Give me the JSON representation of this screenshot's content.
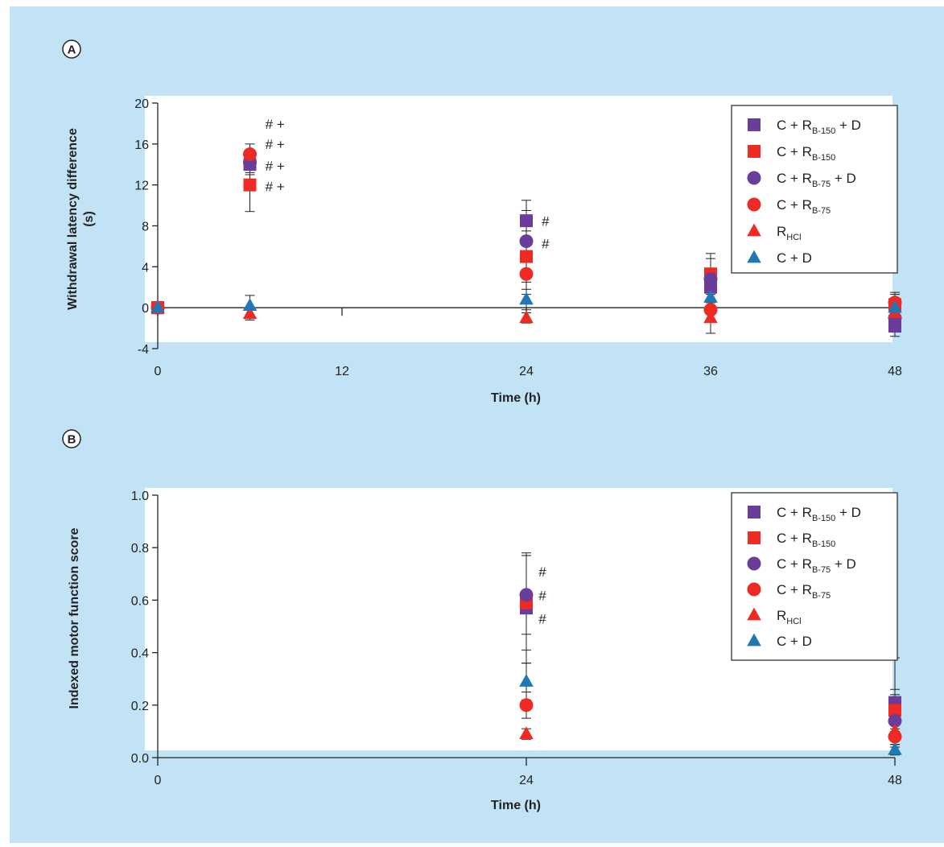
{
  "colors": {
    "background": "#c2e3f5",
    "plot_area": "#ffffff",
    "purple": "#6a3d9a",
    "red": "#ee2a24",
    "blue": "#1f78b4",
    "axis": "#222222"
  },
  "chart_data": [
    {
      "panel": "A",
      "type": "scatter",
      "xlabel": "Time (h)",
      "ylabel_lines": [
        "Withdrawal latency difference",
        "(s)"
      ],
      "xlim": [
        0,
        48
      ],
      "ylim": [
        -4,
        20
      ],
      "xticks": [
        0,
        12,
        24,
        36,
        48
      ],
      "yticks": [
        -4,
        0,
        4,
        8,
        12,
        16,
        20
      ],
      "legend_position": "top-right",
      "series": [
        {
          "name": "C + R",
          "sub": "B-150",
          "suffix": " + D",
          "marker": "square",
          "color": "#6a3d9a",
          "points": [
            {
              "x": 0,
              "y": 0
            },
            {
              "x": 6,
              "y": 14,
              "err": 1
            },
            {
              "x": 24,
              "y": 8.5,
              "err": 2
            },
            {
              "x": 36,
              "y": 2,
              "err": 1.5
            },
            {
              "x": 48,
              "y": -1.8,
              "err": 1
            }
          ]
        },
        {
          "name": "C + R",
          "sub": "B-150",
          "suffix": "",
          "marker": "square",
          "color": "#ee2a24",
          "points": [
            {
              "x": 0,
              "y": 0
            },
            {
              "x": 6,
              "y": 12,
              "err": 2.6
            },
            {
              "x": 24,
              "y": 5,
              "err": 2.5
            },
            {
              "x": 36,
              "y": 3.3,
              "err": 2
            },
            {
              "x": 48,
              "y": 0.3,
              "err": 1
            }
          ]
        },
        {
          "name": "C + R",
          "sub": "B-75",
          "suffix": " + D",
          "marker": "circle",
          "color": "#6a3d9a",
          "points": [
            {
              "x": 0,
              "y": 0
            },
            {
              "x": 6,
              "y": 14.2,
              "err": 1
            },
            {
              "x": 24,
              "y": 6.5,
              "err": 3
            },
            {
              "x": 36,
              "y": 2.8,
              "err": 2
            },
            {
              "x": 48,
              "y": -1,
              "err": 1
            }
          ]
        },
        {
          "name": "C + R",
          "sub": "B-75",
          "suffix": "",
          "marker": "circle",
          "color": "#ee2a24",
          "points": [
            {
              "x": 0,
              "y": 0
            },
            {
              "x": 6,
              "y": 15,
              "err": 1
            },
            {
              "x": 24,
              "y": 3.3,
              "err": 2
            },
            {
              "x": 36,
              "y": -0.2,
              "err": 1
            },
            {
              "x": 48,
              "y": 0.5,
              "err": 1
            }
          ]
        },
        {
          "name": "R",
          "sub": "HCl",
          "suffix": "",
          "marker": "triangle",
          "color": "#ee2a24",
          "points": [
            {
              "x": 0,
              "y": 0
            },
            {
              "x": 6,
              "y": -0.6,
              "err": 0.6
            },
            {
              "x": 24,
              "y": -1,
              "err": 0.5
            },
            {
              "x": 36,
              "y": -1,
              "err": 1.5
            },
            {
              "x": 48,
              "y": -0.5,
              "err": 0.5
            }
          ]
        },
        {
          "name": "C + D",
          "sub": "",
          "suffix": "",
          "marker": "triangle",
          "color": "#1f78b4",
          "points": [
            {
              "x": 0,
              "y": 0
            },
            {
              "x": 6,
              "y": 0.2,
              "err": 1
            },
            {
              "x": 24,
              "y": 0.8,
              "err": 1
            },
            {
              "x": 36,
              "y": 1,
              "err": 0.8
            },
            {
              "x": 48,
              "y": 0,
              "err": 0.6
            }
          ]
        }
      ],
      "annotations": [
        {
          "x": 7,
          "y": 17.5,
          "text": "#  +"
        },
        {
          "x": 7,
          "y": 15.5,
          "text": "#  +"
        },
        {
          "x": 7,
          "y": 13.4,
          "text": "#  +"
        },
        {
          "x": 7,
          "y": 11.4,
          "text": "#  +"
        },
        {
          "x": 25,
          "y": 8,
          "text": "#"
        },
        {
          "x": 25,
          "y": 5.8,
          "text": "#"
        }
      ]
    },
    {
      "panel": "B",
      "type": "scatter",
      "xlabel": "Time (h)",
      "ylabel_lines": [
        "Indexed motor function score"
      ],
      "xlim": [
        0,
        48
      ],
      "ylim": [
        0,
        1.0
      ],
      "xticks": [
        0,
        24,
        48
      ],
      "yticks": [
        0.0,
        0.2,
        0.4,
        0.6,
        0.8,
        1.0
      ],
      "ytick_decimals": 1,
      "legend_position": "top-right",
      "series": [
        {
          "name": "C + R",
          "sub": "B-150",
          "suffix": " + D",
          "marker": "square",
          "color": "#6a3d9a",
          "points": [
            {
              "x": 24,
              "y": 0.57,
              "err": 0.21
            },
            {
              "x": 48,
              "y": 0.21,
              "err": 0.17
            }
          ]
        },
        {
          "name": "C + R",
          "sub": "B-150",
          "suffix": "",
          "marker": "square",
          "color": "#ee2a24",
          "points": [
            {
              "x": 24,
              "y": 0.59,
              "err": 0.18
            },
            {
              "x": 48,
              "y": 0.18,
              "err": 0.08
            }
          ]
        },
        {
          "name": "C + R",
          "sub": "B-75",
          "suffix": " + D",
          "marker": "circle",
          "color": "#6a3d9a",
          "points": [
            {
              "x": 24,
              "y": 0.62,
              "err": 0.15
            },
            {
              "x": 48,
              "y": 0.14,
              "err": 0.1
            }
          ]
        },
        {
          "name": "C + R",
          "sub": "B-75",
          "suffix": "",
          "marker": "circle",
          "color": "#ee2a24",
          "points": [
            {
              "x": 24,
              "y": 0.2,
              "err": 0.05
            },
            {
              "x": 48,
              "y": 0.08,
              "err": 0.03
            }
          ]
        },
        {
          "name": "R",
          "sub": "HCl",
          "suffix": "",
          "marker": "triangle",
          "color": "#ee2a24",
          "points": [
            {
              "x": 24,
              "y": 0.09,
              "err": 0.02
            },
            {
              "x": 48,
              "y": 0.1,
              "err": 0.03
            }
          ]
        },
        {
          "name": "C + D",
          "sub": "",
          "suffix": "",
          "marker": "triangle",
          "color": "#1f78b4",
          "points": [
            {
              "x": 24,
              "y": 0.29,
              "err": 0.07
            },
            {
              "x": 48,
              "y": 0.03,
              "err": 0.02
            }
          ]
        }
      ],
      "annotations": [
        {
          "x": 24.8,
          "y": 0.69,
          "text": "#"
        },
        {
          "x": 24.8,
          "y": 0.6,
          "text": "#"
        },
        {
          "x": 24.8,
          "y": 0.51,
          "text": "#"
        }
      ]
    }
  ]
}
